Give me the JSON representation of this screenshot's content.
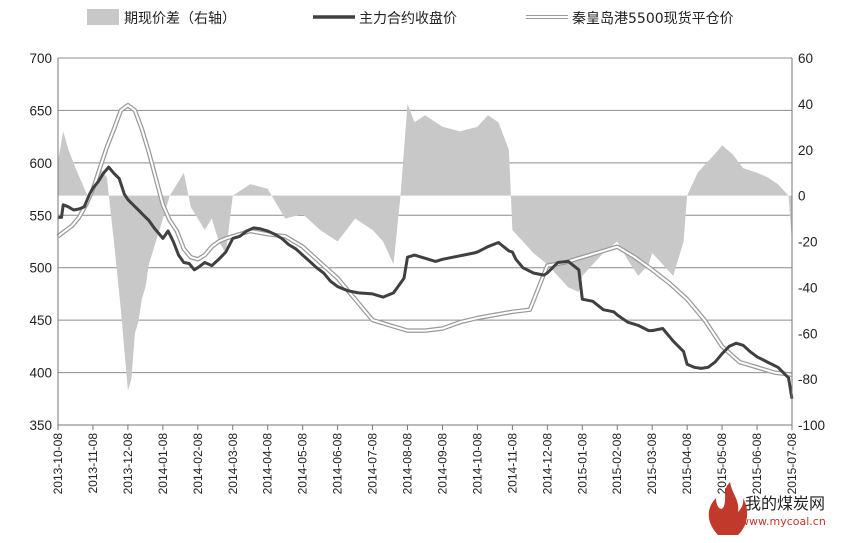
{
  "chart_data": {
    "type": "line",
    "left_axis": {
      "ylim": [
        350,
        700
      ],
      "ticks": [
        350,
        400,
        450,
        500,
        550,
        600,
        650,
        700
      ]
    },
    "right_axis": {
      "ylim": [
        -100,
        60
      ],
      "ticks": [
        -100,
        -80,
        -60,
        -40,
        -20,
        0,
        20,
        40,
        60
      ]
    },
    "x_categories": [
      "2013-10-08",
      "2013-11-08",
      "2013-12-08",
      "2014-01-08",
      "2014-02-08",
      "2014-03-08",
      "2014-04-08",
      "2014-05-08",
      "2014-06-08",
      "2014-07-08",
      "2014-08-08",
      "2014-09-08",
      "2014-10-08",
      "2014-11-08",
      "2014-12-08",
      "2015-01-08",
      "2015-02-08",
      "2015-03-08",
      "2015-04-08",
      "2015-05-08",
      "2015-06-08",
      "2015-07-08"
    ],
    "grid": true,
    "legend_position": "top",
    "legend": [
      {
        "name": "期现价差（右轴）",
        "type": "area",
        "color": "#c8c8c8"
      },
      {
        "name": "主力合约收盘价",
        "type": "line",
        "color": "#404040"
      },
      {
        "name": "秦皇岛港5500现货平仓价",
        "type": "double-line",
        "color": "#9a9a9a"
      }
    ],
    "series": [
      {
        "name": "主力合约收盘价",
        "axis": "left",
        "x": [
          0,
          0.1,
          0.15,
          0.3,
          0.45,
          0.6,
          0.75,
          0.9,
          1.0,
          1.15,
          1.3,
          1.45,
          1.6,
          1.75,
          1.9,
          2.0,
          2.15,
          2.3,
          2.45,
          2.6,
          2.75,
          2.9,
          3.0,
          3.15,
          3.3,
          3.45,
          3.6,
          3.75,
          3.9,
          4.0,
          4.2,
          4.4,
          4.6,
          4.8,
          5.0,
          5.2,
          5.4,
          5.6,
          5.8,
          6.0,
          6.2,
          6.4,
          6.6,
          6.8,
          7.0,
          7.2,
          7.4,
          7.6,
          7.8,
          8.0,
          8.3,
          8.6,
          9.0,
          9.3,
          9.6,
          9.9,
          10.0,
          10.1,
          10.2,
          10.4,
          10.6,
          10.8,
          11.0,
          11.3,
          11.6,
          11.9,
          12.0,
          12.3,
          12.6,
          12.9,
          13.0,
          13.1,
          13.3,
          13.6,
          13.9,
          14.0,
          14.3,
          14.6,
          14.9,
          15.0,
          15.3,
          15.6,
          15.9,
          16.0,
          16.3,
          16.6,
          16.9,
          17.0,
          17.3,
          17.6,
          17.9,
          18.0,
          18.2,
          18.4,
          18.6,
          18.8,
          19.0,
          19.2,
          19.4,
          19.6,
          19.8,
          20.0,
          20.3,
          20.6,
          20.9,
          21.0
        ],
        "values": [
          548,
          548,
          560,
          558,
          555,
          556,
          558,
          570,
          576,
          582,
          590,
          596,
          590,
          585,
          570,
          565,
          560,
          555,
          550,
          545,
          538,
          532,
          528,
          535,
          525,
          512,
          505,
          504,
          498,
          500,
          505,
          502,
          508,
          515,
          528,
          530,
          535,
          538,
          537,
          535,
          532,
          528,
          522,
          518,
          512,
          506,
          500,
          495,
          487,
          482,
          478,
          476,
          475,
          472,
          476,
          490,
          510,
          511,
          512,
          510,
          508,
          506,
          508,
          510,
          512,
          514,
          515,
          520,
          524,
          516,
          515,
          508,
          500,
          495,
          493,
          495,
          505,
          506,
          498,
          470,
          468,
          460,
          458,
          455,
          448,
          445,
          440,
          440,
          442,
          430,
          420,
          408,
          405,
          404,
          405,
          410,
          418,
          425,
          428,
          426,
          420,
          415,
          410,
          405,
          395,
          375
        ]
      },
      {
        "name": "秦皇岛港5500现货平仓价",
        "axis": "left",
        "x": [
          0,
          0.2,
          0.4,
          0.6,
          0.8,
          1.0,
          1.2,
          1.4,
          1.6,
          1.8,
          2.0,
          2.2,
          2.4,
          2.6,
          2.8,
          3.0,
          3.2,
          3.4,
          3.6,
          3.8,
          4.0,
          4.2,
          4.4,
          4.6,
          4.8,
          5.0,
          5.5,
          6.0,
          6.5,
          7.0,
          7.5,
          8.0,
          8.5,
          9.0,
          9.5,
          10.0,
          10.5,
          11.0,
          11.5,
          12.0,
          12.5,
          13.0,
          13.5,
          14.0,
          14.5,
          15.0,
          15.5,
          16.0,
          16.5,
          17.0,
          17.5,
          18.0,
          18.5,
          19.0,
          19.5,
          20.0,
          20.5,
          21.0
        ],
        "values": [
          530,
          535,
          540,
          548,
          560,
          575,
          595,
          615,
          632,
          650,
          655,
          650,
          632,
          610,
          585,
          560,
          545,
          535,
          518,
          510,
          508,
          512,
          520,
          525,
          528,
          530,
          535,
          532,
          530,
          520,
          505,
          490,
          470,
          450,
          445,
          440,
          440,
          442,
          448,
          452,
          455,
          458,
          460,
          502,
          505,
          510,
          515,
          520,
          510,
          498,
          485,
          470,
          450,
          425,
          410,
          405,
          400,
          398
        ]
      },
      {
        "name": "期现价差（右轴）",
        "axis": "right",
        "type": "area",
        "x": [
          0,
          0.15,
          0.3,
          0.5,
          0.7,
          0.9,
          1.0,
          1.2,
          1.4,
          1.6,
          1.8,
          2.0,
          2.1,
          2.2,
          2.3,
          2.4,
          2.5,
          2.6,
          2.8,
          3.0,
          3.2,
          3.4,
          3.6,
          3.8,
          4.0,
          4.2,
          4.4,
          4.6,
          4.8,
          5.0,
          5.5,
          6.0,
          6.5,
          7.0,
          7.5,
          8.0,
          8.5,
          9.0,
          9.3,
          9.6,
          9.8,
          10.0,
          10.2,
          10.5,
          11.0,
          11.5,
          12.0,
          12.3,
          12.6,
          12.9,
          13.0,
          13.3,
          13.6,
          14.0,
          14.3,
          14.6,
          14.9,
          15.0,
          15.3,
          15.6,
          16.0,
          16.3,
          16.6,
          16.9,
          17.0,
          17.3,
          17.6,
          17.9,
          18.0,
          18.3,
          18.6,
          18.9,
          19.0,
          19.3,
          19.6,
          20.0,
          20.3,
          20.6,
          20.9,
          21.0
        ],
        "values": [
          15,
          28,
          20,
          12,
          5,
          -2,
          5,
          12,
          8,
          -20,
          -50,
          -85,
          -80,
          -60,
          -55,
          -45,
          -40,
          -30,
          -20,
          -10,
          0,
          5,
          10,
          -5,
          -10,
          -15,
          -10,
          -20,
          -25,
          0,
          5,
          3,
          -10,
          -8,
          -15,
          -20,
          -10,
          -15,
          -20,
          -30,
          0,
          40,
          32,
          35,
          30,
          28,
          30,
          35,
          32,
          20,
          -15,
          -20,
          -25,
          -30,
          -35,
          -40,
          -42,
          -35,
          -30,
          -25,
          -20,
          -28,
          -35,
          -30,
          -25,
          -30,
          -35,
          -20,
          0,
          10,
          15,
          20,
          22,
          18,
          12,
          10,
          8,
          5,
          0,
          -20
        ]
      }
    ]
  },
  "watermark": {
    "brand": "我的煤炭网",
    "url": "www.mycoal.cn",
    "brand_color": "#c0392b"
  }
}
